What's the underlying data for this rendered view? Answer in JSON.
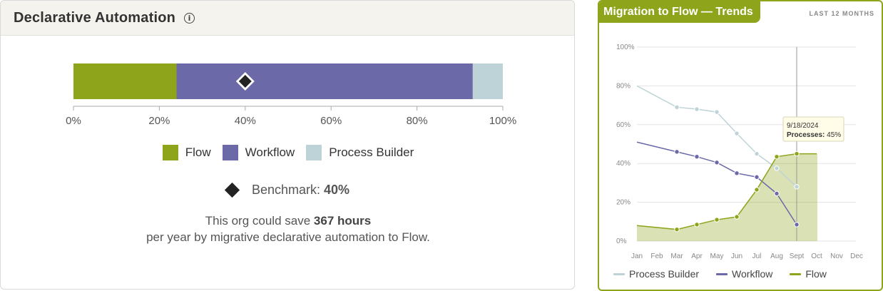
{
  "left_panel": {
    "title": "Declarative Automation",
    "info_icon": "info-icon",
    "ticks": [
      "0%",
      "20%",
      "40%",
      "60%",
      "80%",
      "100%"
    ],
    "segments": [
      {
        "name": "Flow",
        "value": 24,
        "color": "#8ea51b"
      },
      {
        "name": "Workflow",
        "value": 69,
        "color": "#6b69a8"
      },
      {
        "name": "Process Builder",
        "value": 7,
        "color": "#bed3d7"
      }
    ],
    "benchmark_value": 40,
    "legend": [
      "Flow",
      "Workflow",
      "Process Builder"
    ],
    "benchmark_label": "Benchmark:",
    "benchmark_text": "40%",
    "note_pre": "This org could save ",
    "note_bold": "367 hours",
    "note_post": " per year by migrative declarative automation to Flow."
  },
  "right_panel": {
    "title": "Migration to Flow — Trends",
    "subtitle": "LAST 12 MONTHS",
    "tooltip": {
      "date": "9/18/2024",
      "label": "Processes:",
      "value": "45%"
    },
    "legend": [
      "Process Builder",
      "Workflow",
      "Flow"
    ]
  },
  "chart_data": {
    "type": "line",
    "categories": [
      "Jan",
      "Feb",
      "Mar",
      "Apr",
      "May",
      "Jun",
      "Jul",
      "Aug",
      "Sept",
      "Oct",
      "Nov",
      "Dec"
    ],
    "y_ticks": [
      "0%",
      "20%",
      "40%",
      "60%",
      "80%",
      "100%"
    ],
    "ylim": [
      0,
      100
    ],
    "series": [
      {
        "name": "Process Builder",
        "color": "#bed3d7",
        "points": [
          [
            0,
            80
          ],
          [
            2,
            69
          ],
          [
            3,
            68
          ],
          [
            4,
            66.5
          ],
          [
            5,
            55.5
          ],
          [
            6,
            45
          ],
          [
            7,
            37.5
          ],
          [
            8,
            28
          ]
        ]
      },
      {
        "name": "Workflow",
        "color": "#6b69a8",
        "points": [
          [
            0,
            51
          ],
          [
            2,
            46
          ],
          [
            3,
            43.5
          ],
          [
            4,
            40.5
          ],
          [
            5,
            35
          ],
          [
            6,
            33
          ],
          [
            7,
            24.5
          ],
          [
            8,
            8.5
          ]
        ]
      },
      {
        "name": "Flow",
        "color": "#8ea51b",
        "points": [
          [
            0,
            8
          ],
          [
            2,
            6
          ],
          [
            3,
            8.5
          ],
          [
            4,
            11
          ],
          [
            5,
            12.5
          ],
          [
            6,
            26.5
          ],
          [
            7,
            43.5
          ],
          [
            8,
            45
          ],
          [
            9,
            45
          ]
        ]
      }
    ],
    "grid": true,
    "highlight_category": "Sept"
  }
}
